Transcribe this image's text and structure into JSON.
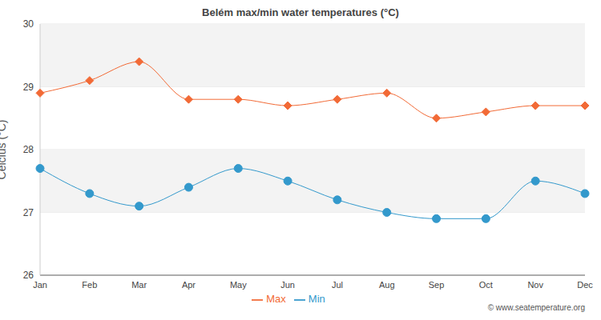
{
  "chart_data": {
    "type": "line",
    "title": "Belém max/min water temperatures (°C)",
    "y_label": "Celcius (°C)",
    "annotations": [
      "© www.seatemperature.org"
    ],
    "categories": [
      "Jan",
      "Feb",
      "Mar",
      "Apr",
      "May",
      "Jun",
      "Jul",
      "Aug",
      "Sep",
      "Oct",
      "Nov",
      "Dec"
    ],
    "series": [
      {
        "name": "Max",
        "color": "#f26a36",
        "marker": "diamond",
        "values": [
          28.9,
          29.1,
          29.4,
          28.8,
          28.8,
          28.7,
          28.8,
          28.9,
          28.5,
          28.6,
          28.7,
          28.7
        ]
      },
      {
        "name": "Min",
        "color": "#3399cc",
        "marker": "circle",
        "values": [
          27.7,
          27.3,
          27.1,
          27.4,
          27.7,
          27.5,
          27.2,
          27.0,
          26.9,
          26.9,
          27.5,
          27.3
        ]
      }
    ],
    "ylim": [
      26,
      30
    ],
    "yticks": [
      26,
      27,
      28,
      29,
      30
    ],
    "grid": true,
    "legend": "bottom"
  }
}
